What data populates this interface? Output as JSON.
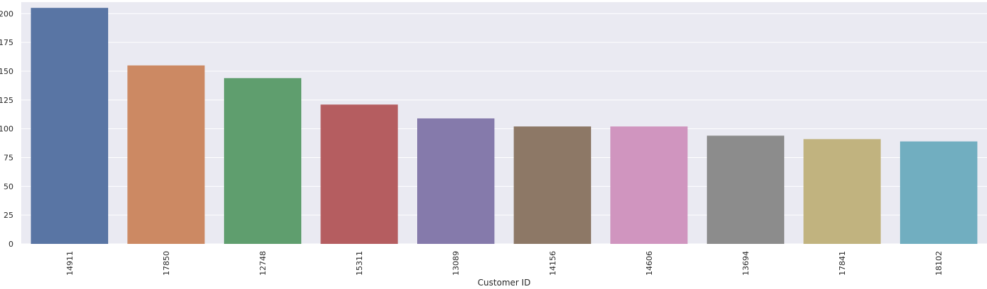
{
  "chart_data": {
    "type": "bar",
    "xlabel": "Customer ID",
    "ylabel": "",
    "categories": [
      "14911",
      "17850",
      "12748",
      "15311",
      "13089",
      "14156",
      "14606",
      "13694",
      "17841",
      "18102"
    ],
    "values": [
      205,
      155,
      144,
      121,
      109,
      102,
      102,
      94,
      91,
      89
    ],
    "ylim": [
      0,
      210
    ],
    "yticks": [
      0,
      25,
      50,
      75,
      100,
      125,
      150,
      175,
      200
    ],
    "ytick_labels": [
      "0",
      "25",
      "50",
      "75",
      "100",
      "125",
      "150",
      "175",
      "200"
    ],
    "colors": [
      "#5975a4",
      "#cc8963",
      "#5f9e6e",
      "#b55d60",
      "#857aab",
      "#8d7866",
      "#d095bf",
      "#8c8c8c",
      "#c1b37f",
      "#71aec0"
    ],
    "background": "#eaeaf2",
    "grid": true,
    "grid_color": "#ffffff",
    "xtick_rotation": -90
  }
}
